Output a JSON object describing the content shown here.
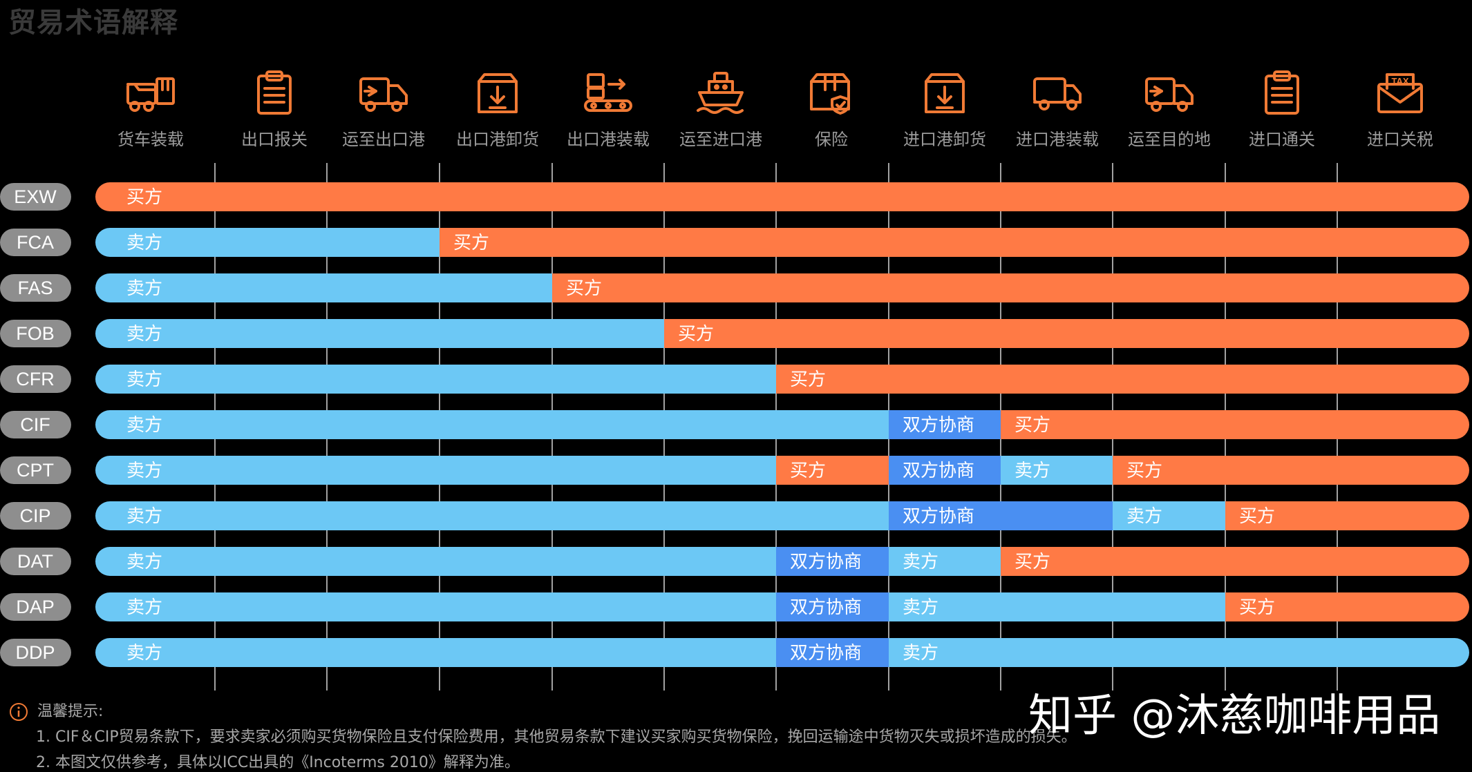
{
  "title": "贸易术语解释",
  "colors": {
    "buyer": "#FF7A45",
    "seller": "#6CC8F5",
    "negotiated": "#4A8FF2",
    "icon": "#F07A35",
    "term_pill": "#8E8E8E"
  },
  "stages": [
    {
      "label": "货车装载",
      "icon": "truck-loading-icon"
    },
    {
      "label": "出口报关",
      "icon": "clipboard-icon"
    },
    {
      "label": "运至出口港",
      "icon": "delivery-truck-icon"
    },
    {
      "label": "出口港卸货",
      "icon": "box-unload-icon"
    },
    {
      "label": "出口港装载",
      "icon": "conveyor-icon"
    },
    {
      "label": "运至进口港",
      "icon": "ship-icon"
    },
    {
      "label": "保险",
      "icon": "insured-box-icon"
    },
    {
      "label": "进口港卸货",
      "icon": "box-unload-icon"
    },
    {
      "label": "进口港装载",
      "icon": "truck-icon"
    },
    {
      "label": "运至目的地",
      "icon": "delivery-truck-icon"
    },
    {
      "label": "进口通关",
      "icon": "clipboard-icon"
    },
    {
      "label": "进口关税",
      "icon": "tax-envelope-icon"
    }
  ],
  "chart_data": {
    "type": "timeline",
    "categories": [
      "货车装载",
      "出口报关",
      "运至出口港",
      "出口港卸货",
      "出口港装载",
      "运至进口港",
      "保险",
      "进口港卸货",
      "进口港装载",
      "运至目的地",
      "进口通关",
      "进口关税"
    ],
    "rows": [
      {
        "term": "EXW",
        "segments": [
          {
            "label": "买方",
            "party": "buyer",
            "from": 0,
            "to": 12
          }
        ]
      },
      {
        "term": "FCA",
        "segments": [
          {
            "label": "卖方",
            "party": "seller",
            "from": 0,
            "to": 3
          },
          {
            "label": "买方",
            "party": "buyer",
            "from": 3,
            "to": 12
          }
        ]
      },
      {
        "term": "FAS",
        "segments": [
          {
            "label": "卖方",
            "party": "seller",
            "from": 0,
            "to": 4
          },
          {
            "label": "买方",
            "party": "buyer",
            "from": 4,
            "to": 12
          }
        ]
      },
      {
        "term": "FOB",
        "segments": [
          {
            "label": "卖方",
            "party": "seller",
            "from": 0,
            "to": 5
          },
          {
            "label": "买方",
            "party": "buyer",
            "from": 5,
            "to": 12
          }
        ]
      },
      {
        "term": "CFR",
        "segments": [
          {
            "label": "卖方",
            "party": "seller",
            "from": 0,
            "to": 6
          },
          {
            "label": "买方",
            "party": "buyer",
            "from": 6,
            "to": 12
          }
        ]
      },
      {
        "term": "CIF",
        "segments": [
          {
            "label": "卖方",
            "party": "seller",
            "from": 0,
            "to": 7
          },
          {
            "label": "双方协商",
            "party": "negotiated",
            "from": 7,
            "to": 8
          },
          {
            "label": "买方",
            "party": "buyer",
            "from": 8,
            "to": 12
          }
        ]
      },
      {
        "term": "CPT",
        "segments": [
          {
            "label": "卖方",
            "party": "seller",
            "from": 0,
            "to": 6
          },
          {
            "label": "买方",
            "party": "buyer",
            "from": 6,
            "to": 7
          },
          {
            "label": "双方协商",
            "party": "negotiated",
            "from": 7,
            "to": 8
          },
          {
            "label": "卖方",
            "party": "seller",
            "from": 8,
            "to": 9
          },
          {
            "label": "买方",
            "party": "buyer",
            "from": 9,
            "to": 12
          }
        ]
      },
      {
        "term": "CIP",
        "segments": [
          {
            "label": "卖方",
            "party": "seller",
            "from": 0,
            "to": 7
          },
          {
            "label": "双方协商",
            "party": "negotiated",
            "from": 7,
            "to": 9
          },
          {
            "label": "卖方",
            "party": "seller",
            "from": 9,
            "to": 10
          },
          {
            "label": "买方",
            "party": "buyer",
            "from": 10,
            "to": 12
          }
        ]
      },
      {
        "term": "DAT",
        "segments": [
          {
            "label": "卖方",
            "party": "seller",
            "from": 0,
            "to": 6
          },
          {
            "label": "双方协商",
            "party": "negotiated",
            "from": 6,
            "to": 7
          },
          {
            "label": "卖方",
            "party": "seller",
            "from": 7,
            "to": 8
          },
          {
            "label": "买方",
            "party": "buyer",
            "from": 8,
            "to": 12
          }
        ]
      },
      {
        "term": "DAP",
        "segments": [
          {
            "label": "卖方",
            "party": "seller",
            "from": 0,
            "to": 6
          },
          {
            "label": "双方协商",
            "party": "negotiated",
            "from": 6,
            "to": 7
          },
          {
            "label": "卖方",
            "party": "seller",
            "from": 7,
            "to": 10
          },
          {
            "label": "买方",
            "party": "buyer",
            "from": 10,
            "to": 12
          }
        ]
      },
      {
        "term": "DDP",
        "segments": [
          {
            "label": "卖方",
            "party": "seller",
            "from": 0,
            "to": 6
          },
          {
            "label": "双方协商",
            "party": "negotiated",
            "from": 6,
            "to": 7
          },
          {
            "label": "卖方",
            "party": "seller",
            "from": 7,
            "to": 12
          }
        ]
      }
    ]
  },
  "notes": {
    "heading": "温馨提示:",
    "lines": [
      "1. CIF＆CIP贸易条款下，要求卖家必须购买货物保险且支付保险费用，其他贸易条款下建议买家购买货物保险，挽回运输途中货物灭失或损坏造成的损失。",
      "2. 本图文仅供参考，具体以ICC出具的《Incoterms 2010》解释为准。"
    ]
  },
  "watermark": "知乎 @沐慈咖啡用品"
}
